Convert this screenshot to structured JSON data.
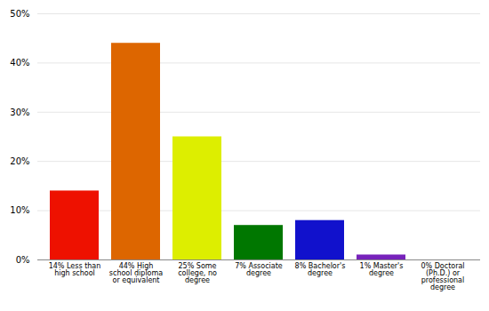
{
  "chart_data": {
    "type": "bar",
    "categories": [
      "14% Less than\nhigh school",
      "44% High\nschool diploma\nor equivalent",
      "25% Some\ncollege, no\ndegree",
      "7% Associate\ndegree",
      "8% Bachelor's\ndegree",
      "1% Master's\ndegree",
      "0% Doctoral\n(Ph.D.) or\nprofessional\ndegree"
    ],
    "values": [
      14,
      44,
      25,
      7,
      8,
      1,
      0
    ],
    "colors": [
      "#ee1100",
      "#dd6600",
      "#ddee00",
      "#007700",
      "#1111cc",
      "#7722bb",
      "#ee44cc"
    ],
    "ylim": [
      0,
      50
    ],
    "yticks": [
      {
        "value": 0,
        "label": "0%"
      },
      {
        "value": 10,
        "label": "10%"
      },
      {
        "value": 20,
        "label": "20%"
      },
      {
        "value": 30,
        "label": "30%"
      },
      {
        "value": 40,
        "label": "40%"
      },
      {
        "value": 50,
        "label": "50%"
      }
    ],
    "grid": true
  }
}
